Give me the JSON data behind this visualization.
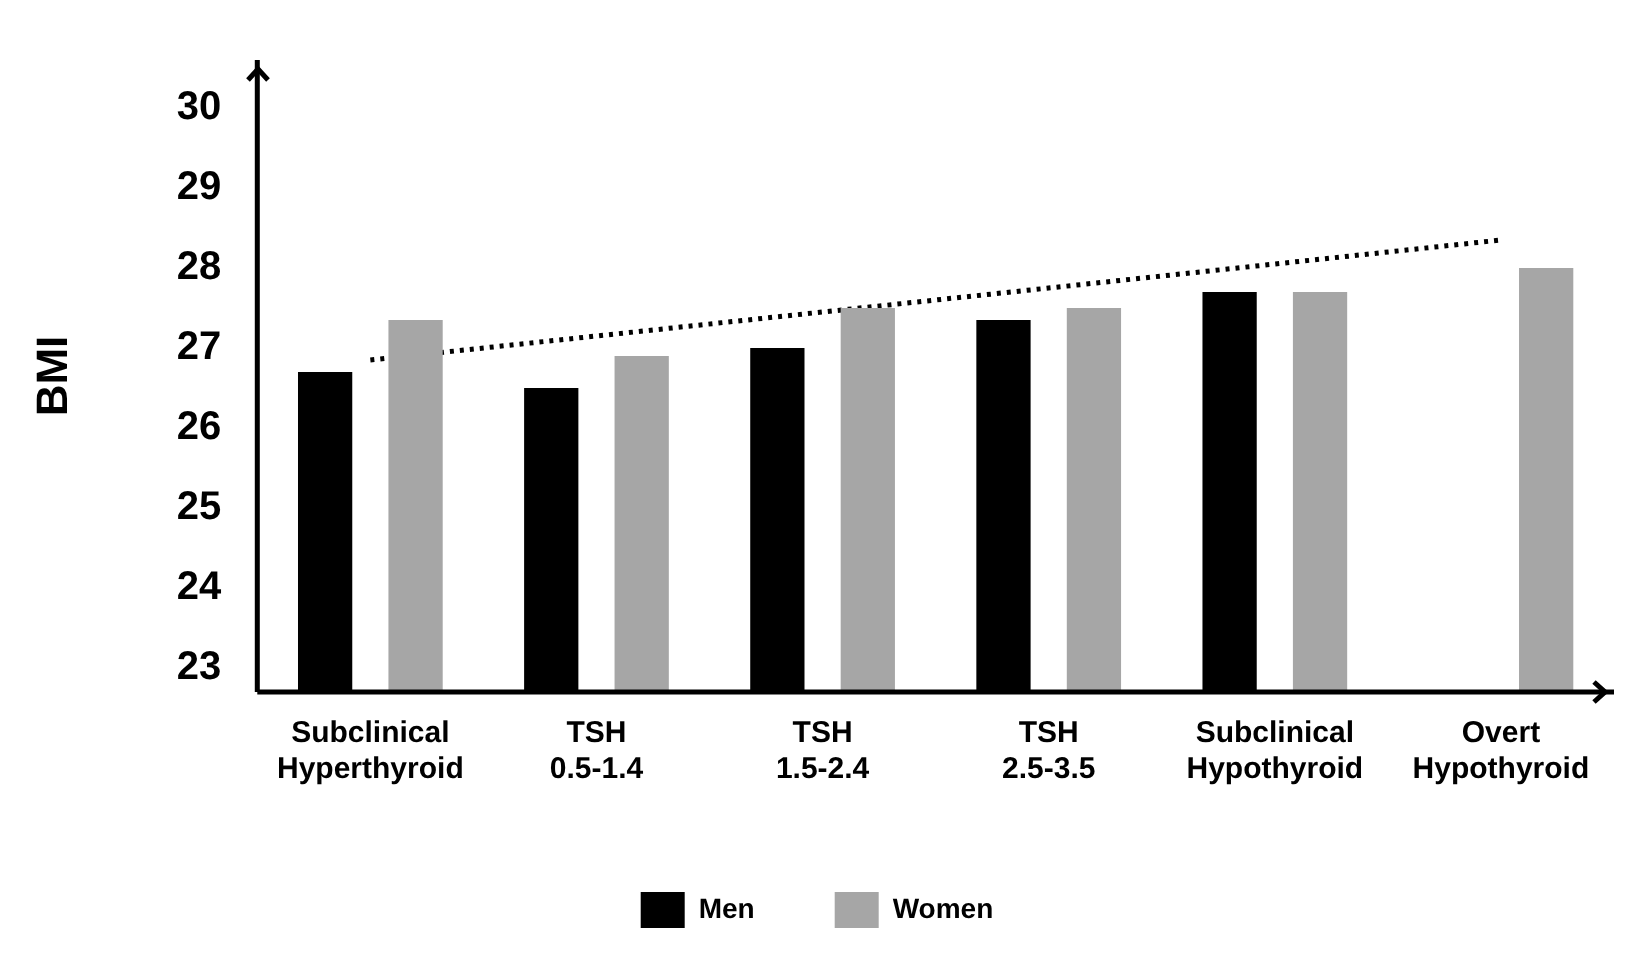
{
  "chart_data": {
    "type": "bar",
    "ylabel": "BMI",
    "categories": [
      "Subclinical Hyperthyroid",
      "TSH 0.5-1.4",
      "TSH 1.5-2.4",
      "TSH 2.5-3.5",
      "Subclinical Hypothyroid",
      "Overt Hypothyroid"
    ],
    "series": [
      {
        "name": "Men",
        "color": "#000000",
        "values": [
          26.7,
          26.5,
          27.0,
          27.35,
          27.7,
          null
        ]
      },
      {
        "name": "Women",
        "color": "#a6a6a6",
        "values": [
          27.35,
          26.9,
          27.5,
          27.5,
          27.7,
          28.0
        ]
      },
      {
        "type": "line",
        "color": "#000000",
        "line_style": "dotted",
        "x": [
          "Subclinical Hyperthyroid",
          "Overt Hypothyroid"
        ],
        "values": [
          26.85,
          28.35
        ]
      }
    ],
    "ylim": [
      22.7,
      30.6
    ],
    "yticks": [
      23,
      24,
      25,
      26,
      27,
      28,
      29,
      30
    ],
    "grid": false,
    "legend": "bottom"
  }
}
